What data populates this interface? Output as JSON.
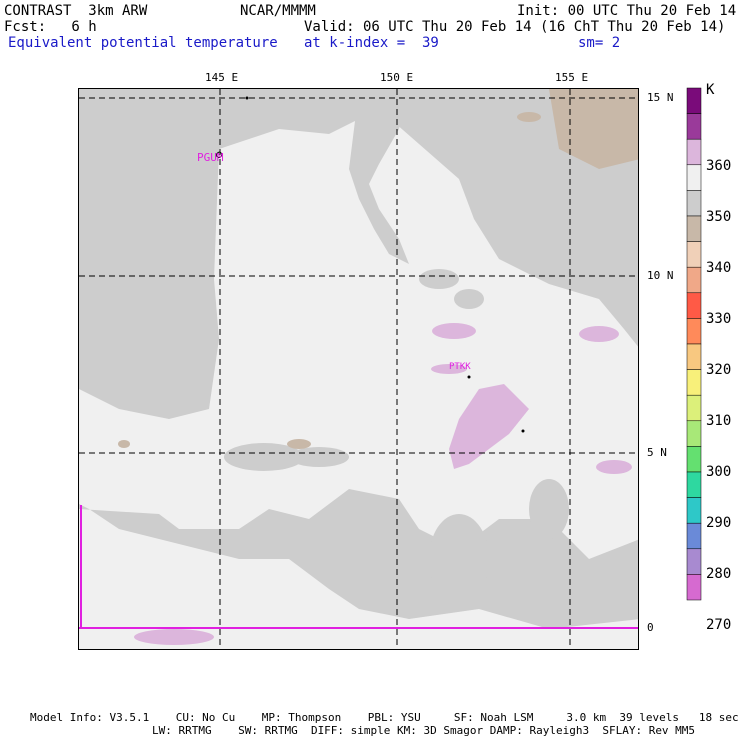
{
  "header": {
    "model": "CONTRAST  3km ARW",
    "org": "NCAR/MMMM",
    "init": "Init: 00 UTC Thu 20 Feb 14",
    "fcst": "Fcst:   6 h",
    "valid": "Valid: 06 UTC Thu 20 Feb 14 (16 ChT Thu 20 Feb 14)",
    "field": "Equivalent potential temperature",
    "level": "at k-index =  39",
    "smooth": "sm= 2"
  },
  "axes": {
    "lon_labels": [
      "145 E",
      "150 E",
      "155 E"
    ],
    "lat_labels": [
      "15 N",
      "10 N",
      "5 N",
      "0"
    ]
  },
  "stations": [
    {
      "id": "PGUM"
    },
    {
      "id": "PTKK"
    }
  ],
  "colorbar": {
    "unit": "K",
    "tick_labels": [
      "360",
      "350",
      "340",
      "330",
      "320",
      "310",
      "300",
      "290",
      "280",
      "270"
    ],
    "colors": [
      "#7a0b7a",
      "#9a3a9a",
      "#dcb6dc",
      "#f0f0f0",
      "#cdcdcd",
      "#c8b8a8",
      "#f0d0b8",
      "#f0a888",
      "#ff5a46",
      "#ff8a5a",
      "#f8c880",
      "#f8f07a",
      "#dcf07a",
      "#a8e878",
      "#64e070",
      "#2ed8a0",
      "#2ec8c8",
      "#6a8ad8",
      "#a88ad0",
      "#d66ad0"
    ]
  },
  "footer": {
    "line1": "Model Info: V3.5.1    CU: No Cu    MP: Thompson    PBL: YSU     SF: Noah LSM     3.0 km  39 levels   18 sec",
    "line2": "LW: RRTMG    SW: RRTMG  DIFF: simple KM: 3D Smagor DAMP: Rayleigh3  SFLAY: Rev MM5"
  }
}
